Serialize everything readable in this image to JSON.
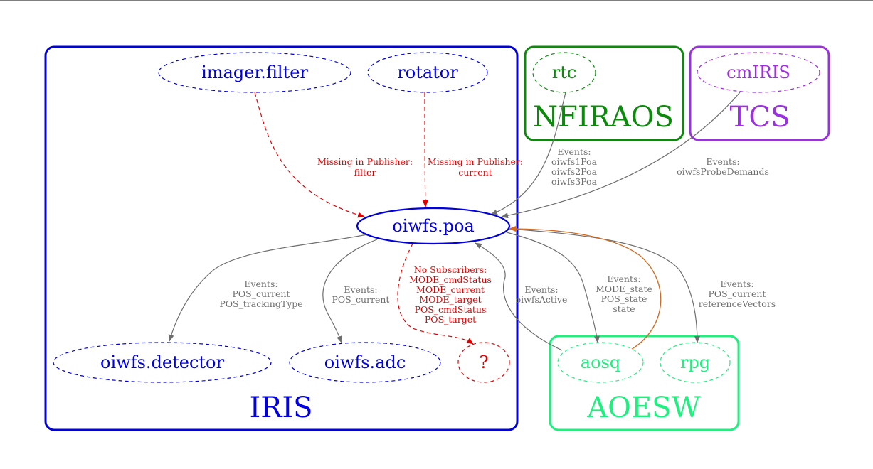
{
  "colors": {
    "iris": "#0000e0",
    "nfiraos": "#0b8a0b",
    "tcs": "#9b30e0",
    "aoesw": "#1ef07e",
    "missing": "#e00000",
    "edge": "#6e6e6e",
    "orange": "#d2691e"
  },
  "clusters": {
    "iris": "IRIS",
    "nfiraos": "NFIRAOS",
    "tcs": "TCS",
    "aoesw": "AOESW"
  },
  "nodes": {
    "imager_filter": "imager.filter",
    "rotator": "rotator",
    "rtc": "rtc",
    "cmiris": "cmIRIS",
    "oiwfs_poa": "oiwfs.poa",
    "oiwfs_detector": "oiwfs.detector",
    "oiwfs_adc": "oiwfs.adc",
    "unknown": "?",
    "aosq": "aosq",
    "rpg": "rpg"
  },
  "edges": {
    "filter_missing": [
      "Missing in Publisher:",
      "filter"
    ],
    "rotator_missing": [
      "Missing in Publisher:",
      "current"
    ],
    "rtc_events": [
      "Events:",
      "oiwfs1Poa",
      "oiwfs2Poa",
      "oiwfs3Poa"
    ],
    "cmiris_events": [
      "Events:",
      "oiwfsProbeDemands"
    ],
    "detector_events": [
      "Events:",
      "POS_current",
      "POS_trackingType"
    ],
    "adc_events": [
      "Events:",
      "POS_current"
    ],
    "no_subscribers": [
      "No Subscribers:",
      "MODE_cmdStatus",
      "MODE_current",
      "MODE_target",
      "POS_cmdStatus",
      "POS_target"
    ],
    "aosq_events": [
      "Events:",
      "oiwfsActive"
    ],
    "poa_aosq_events": [
      "Events:",
      "MODE_state",
      "POS_state",
      "state"
    ],
    "poa_rpg_events": [
      "Events:",
      "POS_current",
      "referenceVectors"
    ]
  }
}
